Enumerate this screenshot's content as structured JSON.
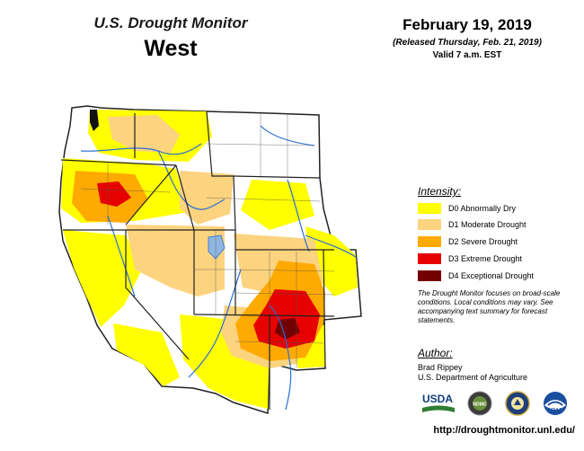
{
  "header": {
    "title": "U.S. Drought Monitor",
    "region": "West",
    "date": "February 19, 2019",
    "released": "(Released Thursday, Feb. 21, 2019)",
    "valid": "Valid 7 a.m. EST"
  },
  "legend": {
    "heading": "Intensity:",
    "items": [
      {
        "label": "D0 Abnormally Dry",
        "color": "#ffff00"
      },
      {
        "label": "D1 Moderate Drought",
        "color": "#fcd37f"
      },
      {
        "label": "D2 Severe Drought",
        "color": "#ffaa00"
      },
      {
        "label": "D3 Extreme Drought",
        "color": "#e60000"
      },
      {
        "label": "D4 Exceptional Drought",
        "color": "#730000"
      }
    ]
  },
  "note": "The Drought Monitor focuses on broad-scale conditions. Local conditions may vary. See accompanying text summary for forecast statements.",
  "author": {
    "heading": "Author:",
    "name": "Brad Rippey",
    "org": "U.S. Department of Agriculture"
  },
  "logos": {
    "usda": "USDA",
    "ndmc": "NDMC",
    "noaa": "NOAA"
  },
  "url": "http://droughtmonitor.unl.edu/",
  "colors": {
    "state_border": "#222222",
    "county_border": "#555555",
    "river": "#2a6fd6",
    "lake": "#8fb6e0",
    "land": "#ffffff"
  }
}
